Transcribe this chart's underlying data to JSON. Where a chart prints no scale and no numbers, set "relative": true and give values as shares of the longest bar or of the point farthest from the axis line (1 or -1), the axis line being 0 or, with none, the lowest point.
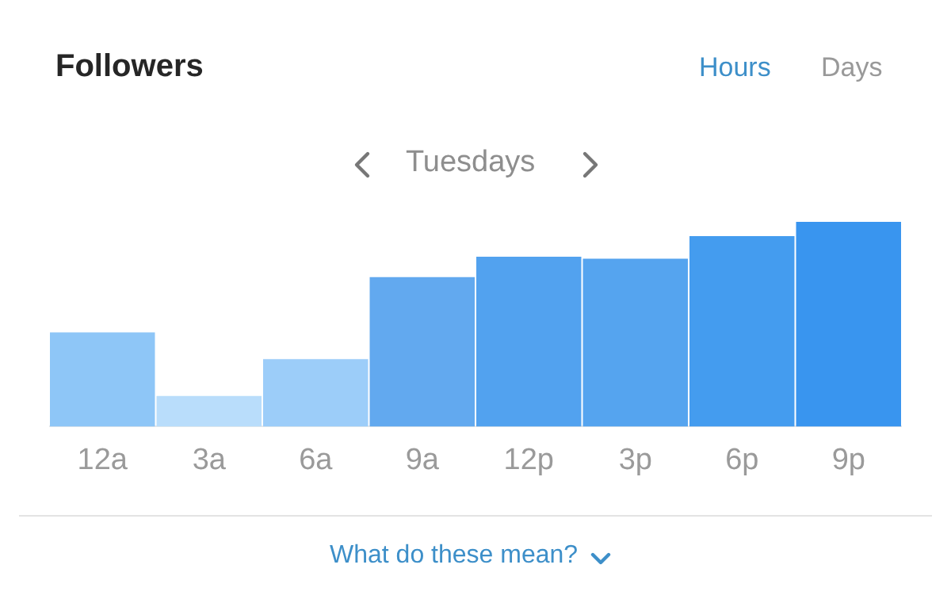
{
  "chart_data": {
    "type": "bar",
    "title": "Followers",
    "subtitle": "Tuesdays",
    "annotations": [
      "Hours",
      "Days",
      "What do these mean?"
    ],
    "categories": [
      "12a",
      "3a",
      "6a",
      "9a",
      "12p",
      "3p",
      "6p",
      "9p"
    ],
    "values": [
      0.46,
      0.15,
      0.33,
      0.73,
      0.83,
      0.82,
      0.93,
      1
    ],
    "colors": [
      "#8ec6f7",
      "#b9ddfb",
      "#9ccdf9",
      "#62a9ef",
      "#52a2ef",
      "#55a4ef",
      "#449cef",
      "#3995ef"
    ],
    "relative": true,
    "grid": false,
    "legend": false
  }
}
